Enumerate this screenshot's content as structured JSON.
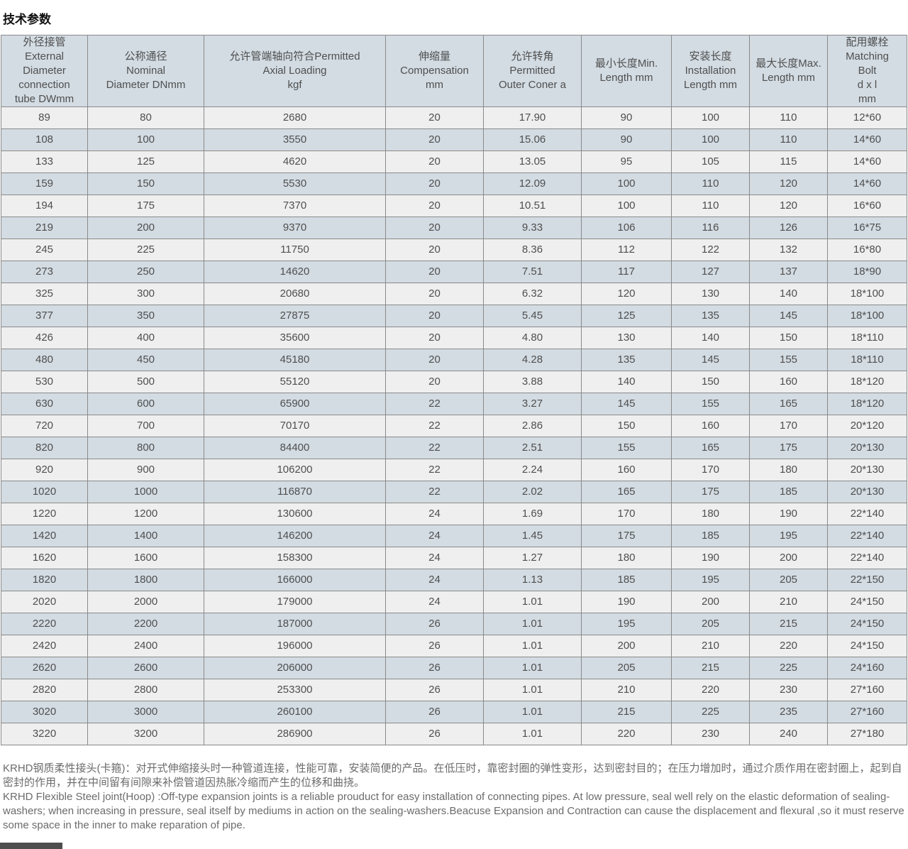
{
  "page": {
    "title": "技术参数"
  },
  "colors": {
    "header_bg": "#d3dce3",
    "row_light": "#efefef",
    "row_blue": "#d3dce3",
    "border": "#8a8a8a",
    "text": "#4f4f4f",
    "note_text": "#6b6b6b"
  },
  "table": {
    "headers": [
      "外径接管\nExternal\nDiameter\nconnection\ntube DWmm",
      "公称通径\nNominal\nDiameter DNmm",
      "允许管端轴向符合Permitted\nAxial Loading\nkgf",
      "伸缩量\nCompensation\nmm",
      "允许转角\nPermitted\nOuter Coner a",
      "最小长度Min.\nLength mm",
      "安装长度\nInstallation\nLength mm",
      "最大长度Max.\nLength mm",
      "配用螺栓\nMatching\nBolt\nd x l\nmm"
    ],
    "rows": [
      [
        "89",
        "80",
        "2680",
        "20",
        "17.90",
        "90",
        "100",
        "110",
        "12*60"
      ],
      [
        "108",
        "100",
        "3550",
        "20",
        "15.06",
        "90",
        "100",
        "110",
        "14*60"
      ],
      [
        "133",
        "125",
        "4620",
        "20",
        "13.05",
        "95",
        "105",
        "115",
        "14*60"
      ],
      [
        "159",
        "150",
        "5530",
        "20",
        "12.09",
        "100",
        "110",
        "120",
        "14*60"
      ],
      [
        "194",
        "175",
        "7370",
        "20",
        "10.51",
        "100",
        "110",
        "120",
        "16*60"
      ],
      [
        "219",
        "200",
        "9370",
        "20",
        "9.33",
        "106",
        "116",
        "126",
        "16*75"
      ],
      [
        "245",
        "225",
        "11750",
        "20",
        "8.36",
        "112",
        "122",
        "132",
        "16*80"
      ],
      [
        "273",
        "250",
        "14620",
        "20",
        "7.51",
        "117",
        "127",
        "137",
        "18*90"
      ],
      [
        "325",
        "300",
        "20680",
        "20",
        "6.32",
        "120",
        "130",
        "140",
        "18*100"
      ],
      [
        "377",
        "350",
        "27875",
        "20",
        "5.45",
        "125",
        "135",
        "145",
        "18*100"
      ],
      [
        "426",
        "400",
        "35600",
        "20",
        "4.80",
        "130",
        "140",
        "150",
        "18*110"
      ],
      [
        "480",
        "450",
        "45180",
        "20",
        "4.28",
        "135",
        "145",
        "155",
        "18*110"
      ],
      [
        "530",
        "500",
        "55120",
        "20",
        "3.88",
        "140",
        "150",
        "160",
        "18*120"
      ],
      [
        "630",
        "600",
        "65900",
        "22",
        "3.27",
        "145",
        "155",
        "165",
        "18*120"
      ],
      [
        "720",
        "700",
        "70170",
        "22",
        "2.86",
        "150",
        "160",
        "170",
        "20*120"
      ],
      [
        "820",
        "800",
        "84400",
        "22",
        "2.51",
        "155",
        "165",
        "175",
        "20*130"
      ],
      [
        "920",
        "900",
        "106200",
        "22",
        "2.24",
        "160",
        "170",
        "180",
        "20*130"
      ],
      [
        "1020",
        "1000",
        "116870",
        "22",
        "2.02",
        "165",
        "175",
        "185",
        "20*130"
      ],
      [
        "1220",
        "1200",
        "130600",
        "24",
        "1.69",
        "170",
        "180",
        "190",
        "22*140"
      ],
      [
        "1420",
        "1400",
        "146200",
        "24",
        "1.45",
        "175",
        "185",
        "195",
        "22*140"
      ],
      [
        "1620",
        "1600",
        "158300",
        "24",
        "1.27",
        "180",
        "190",
        "200",
        "22*140"
      ],
      [
        "1820",
        "1800",
        "166000",
        "24",
        "1.13",
        "185",
        "195",
        "205",
        "22*150"
      ],
      [
        "2020",
        "2000",
        "179000",
        "24",
        "1.01",
        "190",
        "200",
        "210",
        "24*150"
      ],
      [
        "2220",
        "2200",
        "187000",
        "26",
        "1.01",
        "195",
        "205",
        "215",
        "24*150"
      ],
      [
        "2420",
        "2400",
        "196000",
        "26",
        "1.01",
        "200",
        "210",
        "220",
        "24*150"
      ],
      [
        "2620",
        "2600",
        "206000",
        "26",
        "1.01",
        "205",
        "215",
        "225",
        "24*160"
      ],
      [
        "2820",
        "2800",
        "253300",
        "26",
        "1.01",
        "210",
        "220",
        "230",
        "27*160"
      ],
      [
        "3020",
        "3000",
        "260100",
        "26",
        "1.01",
        "215",
        "225",
        "235",
        "27*160"
      ],
      [
        "3220",
        "3200",
        "286900",
        "26",
        "1.01",
        "220",
        "230",
        "240",
        "27*180"
      ]
    ]
  },
  "notes": {
    "zh": "KRHD钢质柔性接头(卡箍)：对开式伸缩接头时一种管道连接，性能可靠，安装简便的产品。在低压时，靠密封圈的弹性变形，达到密封目的；在压力增加时，通过介质作用在密封圈上，起到自密封的作用，并在中间留有间隙来补偿管道因热胀冷缩而产生的位移和曲挠。",
    "en": "KRHD Flexible Steel joint(Hoop) :Off-type expansion joints is a reliable prouduct for easy installation of connecting pipes. At low pressure, seal well rely on the elastic deformation of sealing-washers; when increasing in pressure, seal itself by mediums in action on the sealing-washers.Beacuse Expansion and Contraction can cause the displacement and flexural ,so it must reserve some space in the inner to make reparation of pipe."
  }
}
